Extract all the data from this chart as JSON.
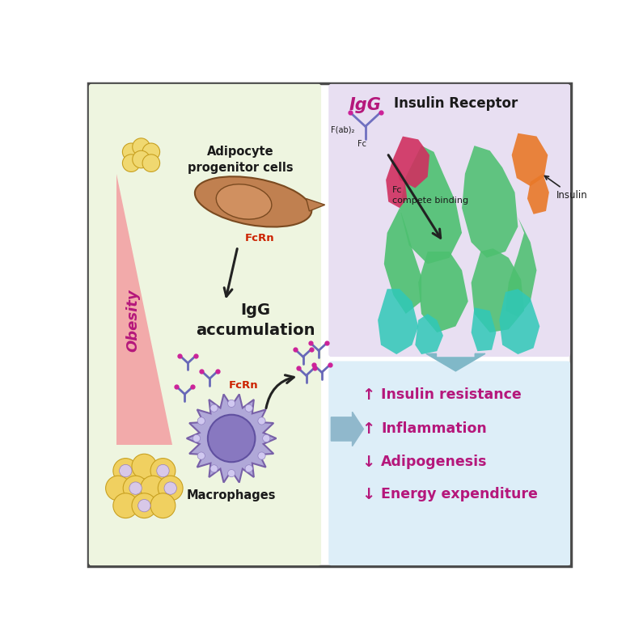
{
  "bg_color": "#ffffff",
  "border_color": "#4a4a4a",
  "left_panel_bg": "#eef5e0",
  "right_top_panel_bg": "#e8dff2",
  "right_bottom_panel_bg": "#ddeef8",
  "magenta": "#b5177b",
  "red_text": "#cc2200",
  "dark_text": "#1a1a1a",
  "obesity_color": "#b5177b",
  "triangle_color": "#f2aaaa",
  "arrow_color": "#222222",
  "IgG_label": "IgG",
  "IgG_sub1": "F(ab)₂",
  "IgG_sub2": "Fc",
  "title_insulin": "Insulin Receptor",
  "insulin_label": "Insulin",
  "fc_compete": "Fc\ncompete binding",
  "obesity_label": "Obesity",
  "adipocyte_label": "Adipocyte\nprogenitor cells",
  "fcrn_label1": "FcRn",
  "fcrn_label2": "FcRn",
  "igg_accum_label": "IgG\naccumulation",
  "macrophage_label": "Macrophages",
  "effects": [
    [
      "↑",
      "Insulin resistance"
    ],
    [
      "↑",
      "Inflammation"
    ],
    [
      "↓",
      "Adipogenesis"
    ],
    [
      "↓",
      "Energy expenditure"
    ]
  ]
}
